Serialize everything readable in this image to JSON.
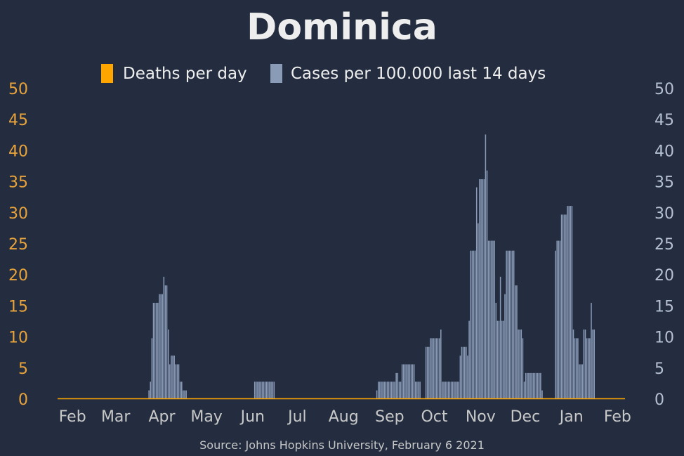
{
  "colors": {
    "background": "#232d3f",
    "title": "#eeeeee",
    "deaths": "#ffa500",
    "cases": "#8a9bb8",
    "left_axis_text": "#e8a33b",
    "right_axis_text": "#b5c0d4",
    "month_text": "#c8c8c8",
    "source_text": "#c8c8c8"
  },
  "chart_data": {
    "type": "bar",
    "title": "Dominica",
    "legend": [
      {
        "name": "Deaths per day",
        "color": "#ffa500"
      },
      {
        "name": "Cases per 100.000 last 14 days",
        "color": "#8a9bb8"
      }
    ],
    "legend_position": "top-center",
    "source": "Source: Johns Hopkins University, February 6 2021",
    "x_range": [
      "2020-01-22",
      "2021-02-05"
    ],
    "x_ticks": [
      {
        "date": "2020-02-01",
        "label": "Feb"
      },
      {
        "date": "2020-03-01",
        "label": "Mar"
      },
      {
        "date": "2020-04-01",
        "label": "Apr"
      },
      {
        "date": "2020-05-01",
        "label": "May"
      },
      {
        "date": "2020-06-01",
        "label": "Jun"
      },
      {
        "date": "2020-07-01",
        "label": "Jul"
      },
      {
        "date": "2020-08-01",
        "label": "Aug"
      },
      {
        "date": "2020-09-01",
        "label": "Sep"
      },
      {
        "date": "2020-10-01",
        "label": "Oct"
      },
      {
        "date": "2020-11-01",
        "label": "Nov"
      },
      {
        "date": "2020-12-01",
        "label": "Dec"
      },
      {
        "date": "2021-01-01",
        "label": "Jan"
      },
      {
        "date": "2021-02-01",
        "label": "Feb"
      }
    ],
    "ylim_left": [
      0,
      50
    ],
    "ylim_right": [
      0,
      50
    ],
    "yticks": [
      0,
      5,
      10,
      15,
      20,
      25,
      30,
      35,
      40,
      45,
      50
    ],
    "grid": false,
    "series": [
      {
        "name": "Deaths per day",
        "axis": "left",
        "points": [
          [
            "2020-01-22",
            0
          ],
          [
            "2021-02-05",
            0
          ]
        ]
      },
      {
        "name": "Cases per 100.000 last 14 days",
        "axis": "right",
        "points": [
          [
            "2020-03-22",
            0
          ],
          [
            "2020-03-23",
            1.4
          ],
          [
            "2020-03-24",
            2.8
          ],
          [
            "2020-03-25",
            9.8
          ],
          [
            "2020-03-26",
            15.5
          ],
          [
            "2020-03-27",
            15.5
          ],
          [
            "2020-03-28",
            15.5
          ],
          [
            "2020-03-29",
            15.5
          ],
          [
            "2020-03-30",
            16.9
          ],
          [
            "2020-03-31",
            16.9
          ],
          [
            "2020-04-01",
            16.9
          ],
          [
            "2020-04-02",
            19.7
          ],
          [
            "2020-04-03",
            18.3
          ],
          [
            "2020-04-04",
            18.3
          ],
          [
            "2020-04-05",
            11.2
          ],
          [
            "2020-04-06",
            5.6
          ],
          [
            "2020-04-07",
            7.0
          ],
          [
            "2020-04-08",
            7.0
          ],
          [
            "2020-04-09",
            7.0
          ],
          [
            "2020-04-10",
            5.6
          ],
          [
            "2020-04-11",
            5.6
          ],
          [
            "2020-04-12",
            5.6
          ],
          [
            "2020-04-13",
            2.8
          ],
          [
            "2020-04-14",
            2.8
          ],
          [
            "2020-04-15",
            1.4
          ],
          [
            "2020-04-16",
            1.4
          ],
          [
            "2020-04-17",
            1.4
          ],
          [
            "2020-04-18",
            0
          ],
          [
            "2020-06-01",
            0
          ],
          [
            "2020-06-02",
            2.8
          ],
          [
            "2020-06-15",
            2.8
          ],
          [
            "2020-06-16",
            0
          ],
          [
            "2020-08-22",
            0
          ],
          [
            "2020-08-23",
            1.4
          ],
          [
            "2020-08-24",
            2.8
          ],
          [
            "2020-09-04",
            2.8
          ],
          [
            "2020-09-05",
            4.2
          ],
          [
            "2020-09-06",
            4.2
          ],
          [
            "2020-09-07",
            2.8
          ],
          [
            "2020-09-08",
            2.8
          ],
          [
            "2020-09-09",
            5.6
          ],
          [
            "2020-09-17",
            5.6
          ],
          [
            "2020-09-18",
            2.8
          ],
          [
            "2020-09-21",
            2.8
          ],
          [
            "2020-09-22",
            0
          ],
          [
            "2020-09-24",
            0
          ],
          [
            "2020-09-25",
            8.4
          ],
          [
            "2020-09-27",
            8.4
          ],
          [
            "2020-09-28",
            9.8
          ],
          [
            "2020-10-04",
            9.8
          ],
          [
            "2020-10-05",
            11.2
          ],
          [
            "2020-10-06",
            2.8
          ],
          [
            "2020-10-17",
            2.8
          ],
          [
            "2020-10-18",
            7.0
          ],
          [
            "2020-10-19",
            8.4
          ],
          [
            "2020-10-22",
            8.4
          ],
          [
            "2020-10-23",
            7.0
          ],
          [
            "2020-10-24",
            12.6
          ],
          [
            "2020-10-25",
            23.9
          ],
          [
            "2020-10-28",
            23.9
          ],
          [
            "2020-10-29",
            34.1
          ],
          [
            "2020-10-30",
            28.3
          ],
          [
            "2020-10-31",
            35.4
          ],
          [
            "2020-11-03",
            35.4
          ],
          [
            "2020-11-04",
            42.6
          ],
          [
            "2020-11-05",
            36.8
          ],
          [
            "2020-11-06",
            25.5
          ],
          [
            "2020-11-10",
            25.5
          ],
          [
            "2020-11-11",
            15.5
          ],
          [
            "2020-11-12",
            12.6
          ],
          [
            "2020-11-13",
            12.6
          ],
          [
            "2020-11-14",
            19.7
          ],
          [
            "2020-11-15",
            12.6
          ],
          [
            "2020-11-16",
            12.6
          ],
          [
            "2020-11-17",
            16.9
          ],
          [
            "2020-11-18",
            23.9
          ],
          [
            "2020-11-23",
            23.9
          ],
          [
            "2020-11-24",
            18.3
          ],
          [
            "2020-11-25",
            18.3
          ],
          [
            "2020-11-26",
            11.2
          ],
          [
            "2020-11-28",
            11.2
          ],
          [
            "2020-11-29",
            9.8
          ],
          [
            "2020-11-30",
            2.8
          ],
          [
            "2020-12-01",
            4.2
          ],
          [
            "2020-12-11",
            4.2
          ],
          [
            "2020-12-12",
            1.4
          ],
          [
            "2020-12-13",
            0
          ],
          [
            "2020-12-20",
            0
          ],
          [
            "2020-12-21",
            23.9
          ],
          [
            "2020-12-22",
            25.5
          ],
          [
            "2020-12-24",
            25.5
          ],
          [
            "2020-12-25",
            29.7
          ],
          [
            "2020-12-28",
            29.7
          ],
          [
            "2020-12-29",
            31.1
          ],
          [
            "2021-01-01",
            31.1
          ],
          [
            "2021-01-02",
            11.2
          ],
          [
            "2021-01-03",
            9.8
          ],
          [
            "2021-01-05",
            9.8
          ],
          [
            "2021-01-06",
            5.6
          ],
          [
            "2021-01-08",
            5.6
          ],
          [
            "2021-01-09",
            11.2
          ],
          [
            "2021-01-10",
            11.2
          ],
          [
            "2021-01-11",
            9.8
          ],
          [
            "2021-01-13",
            9.8
          ],
          [
            "2021-01-14",
            15.5
          ],
          [
            "2021-01-15",
            11.2
          ],
          [
            "2021-01-16",
            11.2
          ]
        ]
      }
    ]
  }
}
